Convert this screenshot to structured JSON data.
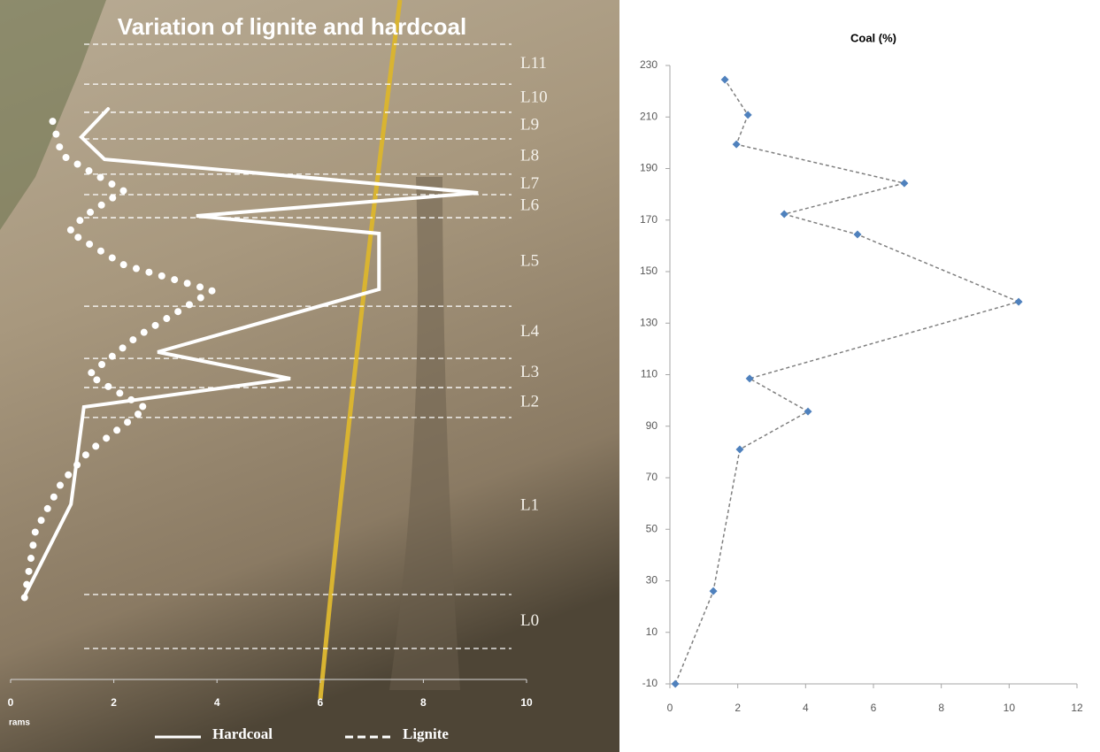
{
  "chart_data": [
    {
      "type": "line",
      "title": "Variation of lignite and hardcoal",
      "x_label": "rams",
      "xlim": [
        0,
        10
      ],
      "xticks": [
        0,
        2,
        4,
        6,
        8,
        10
      ],
      "ylim": [
        -10,
        230
      ],
      "layers": [
        "L0",
        "L1",
        "L2",
        "L3",
        "L4",
        "L5",
        "L6",
        "L7",
        "L8",
        "L9",
        "L10",
        "L11"
      ],
      "layer_boundaries": [
        2.1,
        23.2,
        92.4,
        104.1,
        115.5,
        135.9,
        170.5,
        179.5,
        187.5,
        201.3,
        211.7,
        222.7,
        238.3
      ],
      "series": [
        {
          "name": "Hardcoal",
          "color": "#ffffff",
          "line_style": "solid",
          "x": [
            0.26,
            1.17,
            1.42,
            5.42,
            2.85,
            7.14,
            7.14,
            3.6,
            9.06,
            1.82,
            1.37,
            1.89
          ],
          "y": [
            22.2,
            58.5,
            96.5,
            107.6,
            118,
            142.5,
            164.3,
            171.2,
            180.2,
            193.3,
            202,
            213
          ]
        },
        {
          "name": "Lignite",
          "color": "#ffffff",
          "line_style": "dotted",
          "x": [
            0.27,
            0.48,
            0.99,
            1.51,
            2.62,
            1.51,
            2.45,
            3.91,
            2.2,
            1.13,
            1.42,
            2.19,
            0.99,
            0.79
          ],
          "y": [
            22,
            48,
            67,
            79,
            96,
            109,
            124,
            142,
            152,
            165,
            171,
            181,
            195,
            210
          ]
        }
      ]
    },
    {
      "type": "scatter",
      "title": "Coal (%)",
      "color": "#4f81bd",
      "line_color": "#7f7f7f",
      "xlim": [
        0,
        12
      ],
      "xticks": [
        0,
        2,
        4,
        6,
        8,
        10,
        12
      ],
      "ylim": [
        -10,
        230
      ],
      "yticks": [
        -10,
        10,
        30,
        50,
        70,
        90,
        110,
        130,
        150,
        170,
        190,
        210,
        230
      ],
      "x": [
        0.16,
        1.28,
        2.06,
        4.07,
        2.35,
        10.28,
        5.53,
        3.37,
        6.91,
        1.96,
        2.3,
        1.62
      ],
      "y": [
        -10,
        26,
        81,
        95.7,
        108.5,
        138.3,
        164.4,
        172.3,
        184.3,
        199.4,
        210.8,
        224.5
      ]
    }
  ]
}
